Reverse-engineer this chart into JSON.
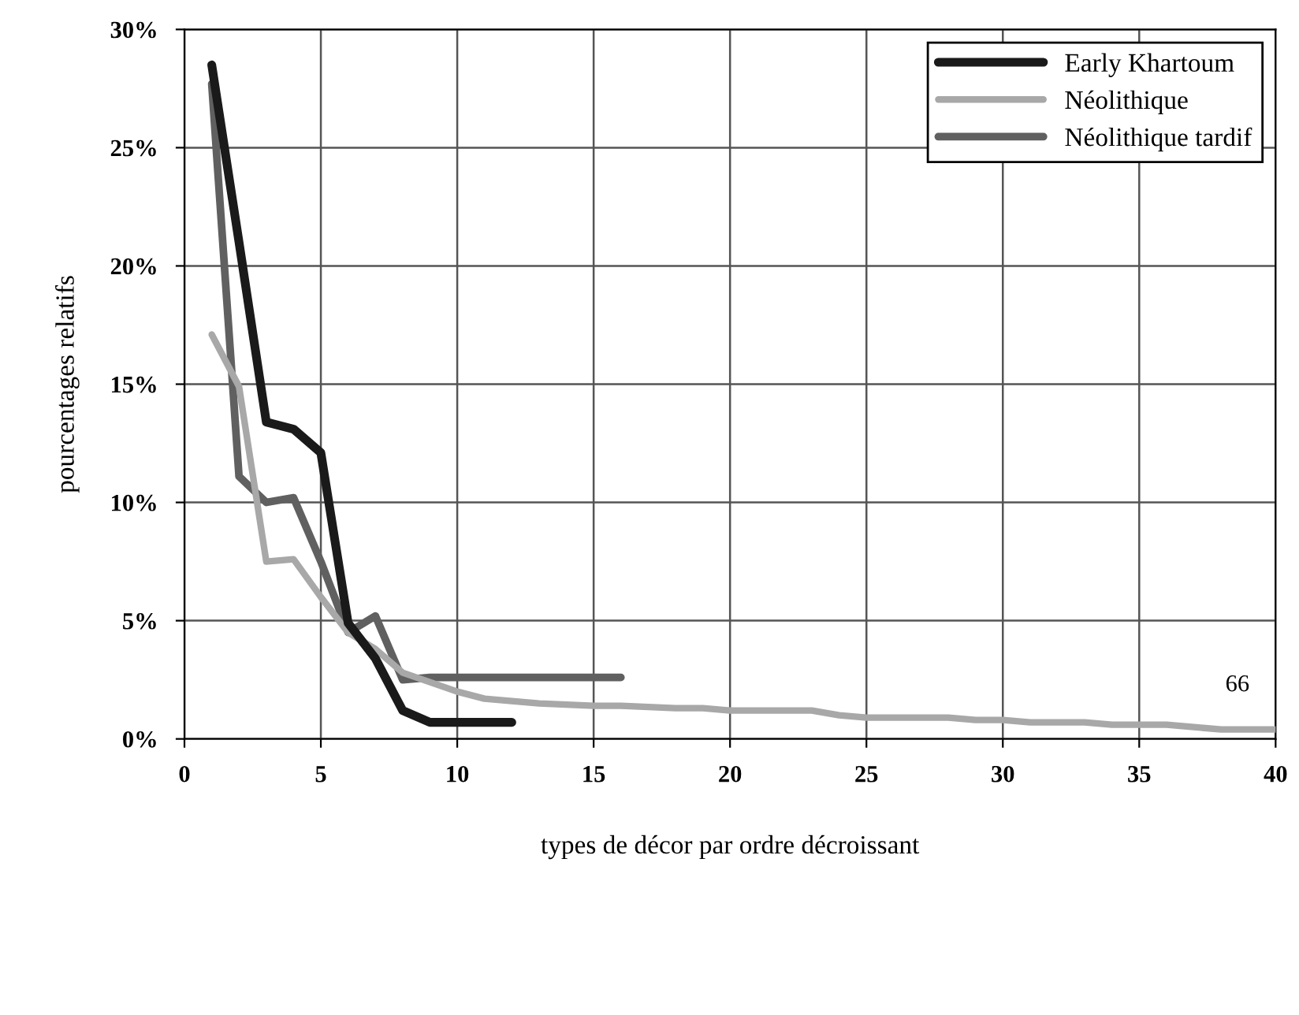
{
  "chart_data": {
    "type": "line",
    "xlabel": "types de décor par ordre décroissant",
    "ylabel": "pourcentages relatifs",
    "xlim": [
      0,
      40
    ],
    "xticks": [
      0,
      5,
      10,
      15,
      20,
      25,
      30,
      35,
      40
    ],
    "ylim": [
      0,
      30
    ],
    "yticks": [
      {
        "value": 0,
        "label": "0%"
      },
      {
        "value": 5,
        "label": "5%"
      },
      {
        "value": 10,
        "label": "10%"
      },
      {
        "value": 15,
        "label": "15%"
      },
      {
        "value": 20,
        "label": "20%"
      },
      {
        "value": 25,
        "label": "25%"
      },
      {
        "value": 30,
        "label": "30%"
      }
    ],
    "grid": true,
    "legend": "top right",
    "marker": "none",
    "line_style": "solid",
    "annotations": [
      "66"
    ],
    "series": [
      {
        "name": "Early Khartoum",
        "color": "#1a1a1a",
        "x": [
          1,
          2,
          3,
          4,
          5,
          6,
          7,
          8,
          9,
          10,
          11,
          12
        ],
        "values": [
          28.5,
          21,
          13.4,
          13.1,
          12.1,
          4.9,
          3.4,
          1.2,
          0.7,
          0.7,
          0.7,
          0.7
        ]
      },
      {
        "name": "Néolithique",
        "color": "#a8a8a8",
        "x": [
          1,
          2,
          3,
          4,
          5,
          6,
          7,
          8,
          9,
          10,
          11,
          12,
          13,
          14,
          15,
          16,
          17,
          18,
          19,
          20,
          21,
          22,
          23,
          24,
          25,
          26,
          27,
          28,
          29,
          30,
          31,
          32,
          33,
          34,
          35,
          36,
          37,
          38,
          39,
          40
        ],
        "values": [
          17.1,
          14.9,
          7.5,
          7.6,
          6.0,
          4.5,
          3.8,
          2.8,
          2.4,
          2.0,
          1.7,
          1.6,
          1.5,
          1.45,
          1.4,
          1.4,
          1.35,
          1.3,
          1.3,
          1.2,
          1.2,
          1.2,
          1.2,
          1.0,
          0.9,
          0.9,
          0.9,
          0.9,
          0.8,
          0.8,
          0.7,
          0.7,
          0.7,
          0.6,
          0.6,
          0.6,
          0.5,
          0.4,
          0.4,
          0.4
        ]
      },
      {
        "name": "Néolithique tardif",
        "color": "#606060",
        "x": [
          1,
          2,
          3,
          4,
          5,
          6,
          7,
          8,
          9,
          10,
          11,
          12,
          13,
          14,
          15,
          16
        ],
        "values": [
          27.7,
          11.1,
          10.0,
          10.2,
          7.5,
          4.5,
          5.2,
          2.5,
          2.6,
          2.6,
          2.6,
          2.6,
          2.6,
          2.6,
          2.6,
          2.6
        ]
      }
    ]
  }
}
